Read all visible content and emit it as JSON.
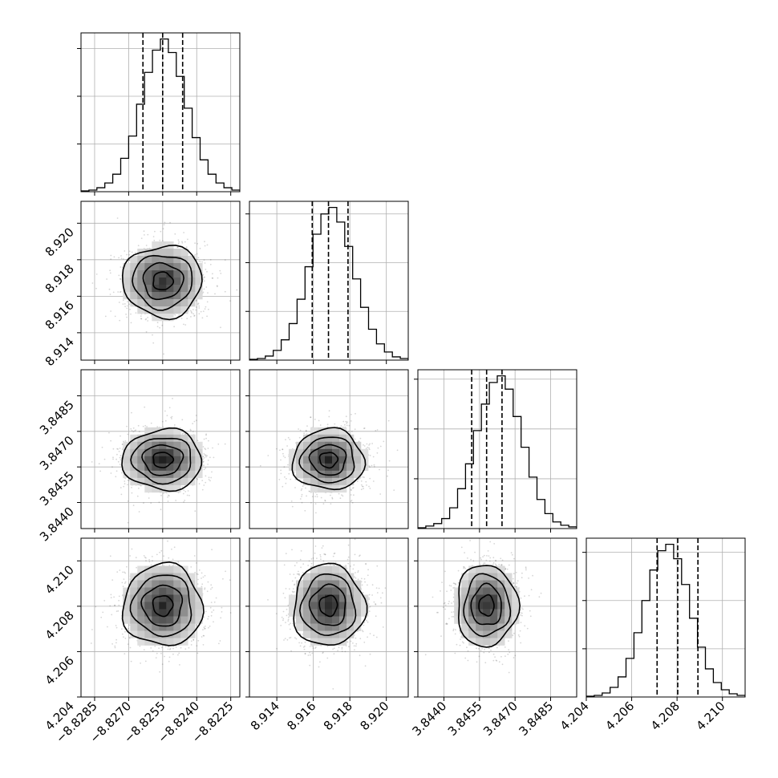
{
  "chart_data": {
    "type": "corner",
    "parameters": [
      {
        "name": "",
        "range": [
          -8.8291,
          -8.8221
        ],
        "ticks": [
          "−8.8285",
          "−8.8270",
          "−8.8255",
          "−8.8240",
          "−8.8225"
        ],
        "tick_values": [
          -8.8285,
          -8.827,
          -8.8255,
          -8.824,
          -8.8225
        ],
        "quantiles": [
          -8.82637,
          -8.8255,
          -8.82462
        ]
      },
      {
        "name": "",
        "range": [
          8.9125,
          8.9212
        ],
        "ticks": [
          "8.914",
          "8.916",
          "8.918",
          "8.920"
        ],
        "tick_values": [
          8.914,
          8.916,
          8.918,
          8.92
        ],
        "quantiles": [
          8.91594,
          8.91683,
          8.9179
        ]
      },
      {
        "name": "",
        "range": [
          3.8429,
          3.8496
        ],
        "ticks": [
          "3.8440",
          "3.8455",
          "3.8470",
          "3.8485"
        ],
        "tick_values": [
          3.844,
          3.8455,
          3.847,
          3.8485
        ],
        "quantiles": [
          3.84517,
          3.8458,
          3.84645
        ]
      },
      {
        "name": "",
        "range": [
          4.204,
          4.211
        ],
        "ticks": [
          "4.204",
          "4.206",
          "4.208",
          "4.210"
        ],
        "tick_values": [
          4.204,
          4.206,
          4.208,
          4.21
        ],
        "quantiles": [
          4.20712,
          4.20803,
          4.20892
        ]
      }
    ],
    "histograms": [
      [
        1,
        2,
        5,
        11,
        22,
        42,
        70,
        110,
        150,
        178,
        192,
        175,
        145,
        105,
        68,
        40,
        22,
        11,
        5,
        2
      ],
      [
        1,
        2,
        5,
        12,
        25,
        45,
        75,
        115,
        155,
        180,
        188,
        170,
        140,
        100,
        65,
        38,
        20,
        10,
        4,
        2
      ],
      [
        1,
        3,
        6,
        12,
        25,
        48,
        78,
        118,
        150,
        176,
        184,
        168,
        135,
        98,
        62,
        35,
        18,
        8,
        4,
        2
      ],
      [
        1,
        2,
        5,
        12,
        25,
        48,
        80,
        120,
        158,
        182,
        190,
        172,
        140,
        98,
        62,
        35,
        18,
        9,
        4,
        2
      ]
    ],
    "quantile_levels": [
      0.16,
      0.5,
      0.84
    ],
    "grid": true
  }
}
